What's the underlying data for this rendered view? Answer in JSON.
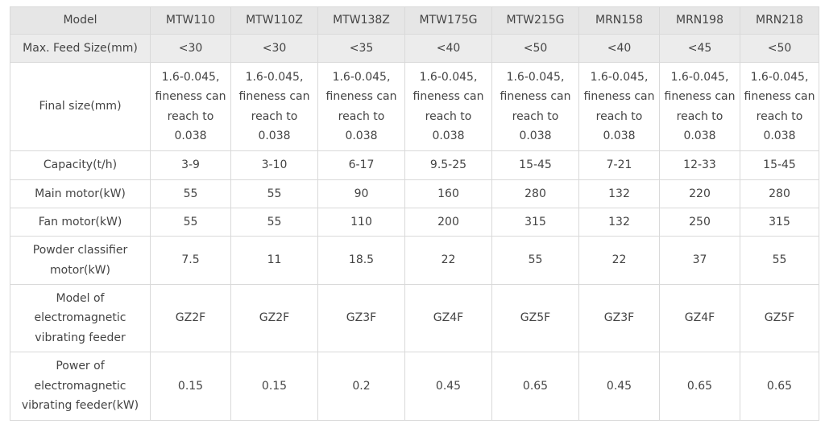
{
  "table": {
    "headers": [
      "Model",
      "MTW110",
      "MTW110Z",
      "MTW138Z",
      "MTW175G",
      "MTW215G",
      "MRN158",
      "MRN198",
      "MRN218"
    ],
    "rows": [
      {
        "label": "Max. Feed Size(mm)",
        "values": [
          "<30",
          "<30",
          "<35",
          "<40",
          "<50",
          "<40",
          "<45",
          "<50"
        ]
      },
      {
        "label": "Final size(mm)",
        "values": [
          "1.6-0.045, fineness can reach to 0.038",
          "1.6-0.045, fineness can reach to 0.038",
          "1.6-0.045, fineness can reach to 0.038",
          "1.6-0.045, fineness can reach to 0.038",
          "1.6-0.045, fineness can reach to 0.038",
          "1.6-0.045, fineness can reach to 0.038",
          "1.6-0.045, fineness can reach to 0.038",
          "1.6-0.045, fineness can reach to 0.038"
        ]
      },
      {
        "label": "Capacity(t/h)",
        "values": [
          "3-9",
          "3-10",
          "6-17",
          "9.5-25",
          "15-45",
          "7-21",
          "12-33",
          "15-45"
        ]
      },
      {
        "label": "Main motor(kW)",
        "values": [
          "55",
          "55",
          "90",
          "160",
          "280",
          "132",
          "220",
          "280"
        ]
      },
      {
        "label": "Fan motor(kW)",
        "values": [
          "55",
          "55",
          "110",
          "200",
          "315",
          "132",
          "250",
          "315"
        ]
      },
      {
        "label": "Powder classifier motor(kW)",
        "values": [
          "7.5",
          "11",
          "18.5",
          "22",
          "55",
          "22",
          "37",
          "55"
        ]
      },
      {
        "label": "Model of electromagnetic vibrating feeder",
        "values": [
          "GZ2F",
          "GZ2F",
          "GZ3F",
          "GZ4F",
          "GZ5F",
          "GZ3F",
          "GZ4F",
          "GZ5F"
        ]
      },
      {
        "label": "Power of electromagnetic vibrating feeder(kW)",
        "values": [
          "0.15",
          "0.15",
          "0.2",
          "0.45",
          "0.65",
          "0.45",
          "0.65",
          "0.65"
        ]
      }
    ]
  }
}
